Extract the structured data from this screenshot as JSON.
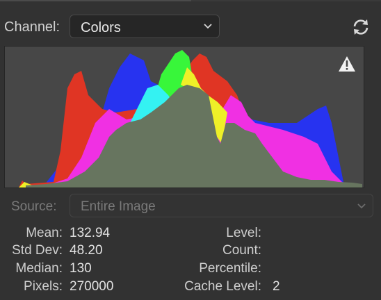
{
  "channel": {
    "label": "Channel:",
    "value": "Colors"
  },
  "icons": {
    "refresh": "refresh-icon",
    "warning": "warning-icon",
    "chevron": "chevron-down-icon"
  },
  "histogram": {
    "colors": {
      "red": "#e03524",
      "blue": "#2733f0",
      "green": "#38f63a",
      "cyan": "#34f2f2",
      "magenta": "#f030e3",
      "yellow": "#eef028",
      "gray": "#67755f"
    }
  },
  "source": {
    "label": "Source:",
    "value": "Entire Image"
  },
  "stats": {
    "mean": {
      "label": "Mean:",
      "value": "132.94"
    },
    "std_dev": {
      "label": "Std Dev:",
      "value": "48.20"
    },
    "median": {
      "label": "Median:",
      "value": "130"
    },
    "pixels": {
      "label": "Pixels:",
      "value": "270000"
    },
    "level": {
      "label": "Level:",
      "value": ""
    },
    "count": {
      "label": "Count:",
      "value": ""
    },
    "percentile": {
      "label": "Percentile:",
      "value": ""
    },
    "cache_level": {
      "label": "Cache Level:",
      "value": "2"
    }
  }
}
